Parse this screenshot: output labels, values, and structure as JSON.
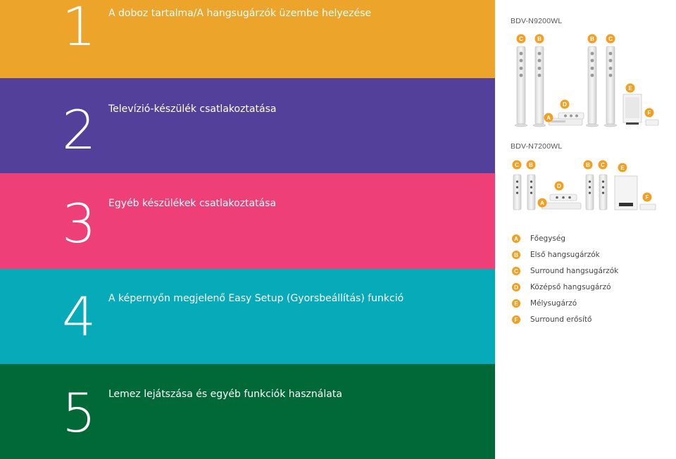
{
  "steps": [
    {
      "number": "1",
      "title": "A doboz tartalma/A hangsugárzók üzembe helyezése",
      "color": "#eca42a"
    },
    {
      "number": "2",
      "title": "Televízió-készülék csatlakoztatása",
      "color": "#53409a"
    },
    {
      "number": "3",
      "title": "Egyéb készülékek csatlakoztatása",
      "color": "#ee3f78"
    },
    {
      "number": "4",
      "title": "A képernyőn megjelenő Easy Setup (Gyorsbeállítás) funkció",
      "color": "#07aab9"
    },
    {
      "number": "5",
      "title": "Lemez lejátszása és egyéb funkciók használata",
      "color": "#006937"
    }
  ],
  "models": [
    {
      "name": "BDV-N9200WL",
      "labels": {
        "C": "C",
        "B": "B",
        "A": "A",
        "D": "D",
        "E": "E",
        "F": "F"
      }
    },
    {
      "name": "BDV-N7200WL",
      "labels": {
        "C": "C",
        "B": "B",
        "A": "A",
        "D": "D",
        "E": "E",
        "F": "F"
      }
    }
  ],
  "legend": [
    {
      "key": "A",
      "text": "Főegység"
    },
    {
      "key": "B",
      "text": "Első hangsugárzók"
    },
    {
      "key": "C",
      "text": "Surround hangsugárzók"
    },
    {
      "key": "D",
      "text": "Középső hangsugárzó"
    },
    {
      "key": "E",
      "text": "Mélysugárzó"
    },
    {
      "key": "F",
      "text": "Surround erősítő"
    }
  ],
  "colors": {
    "badge": "#f29f22"
  }
}
